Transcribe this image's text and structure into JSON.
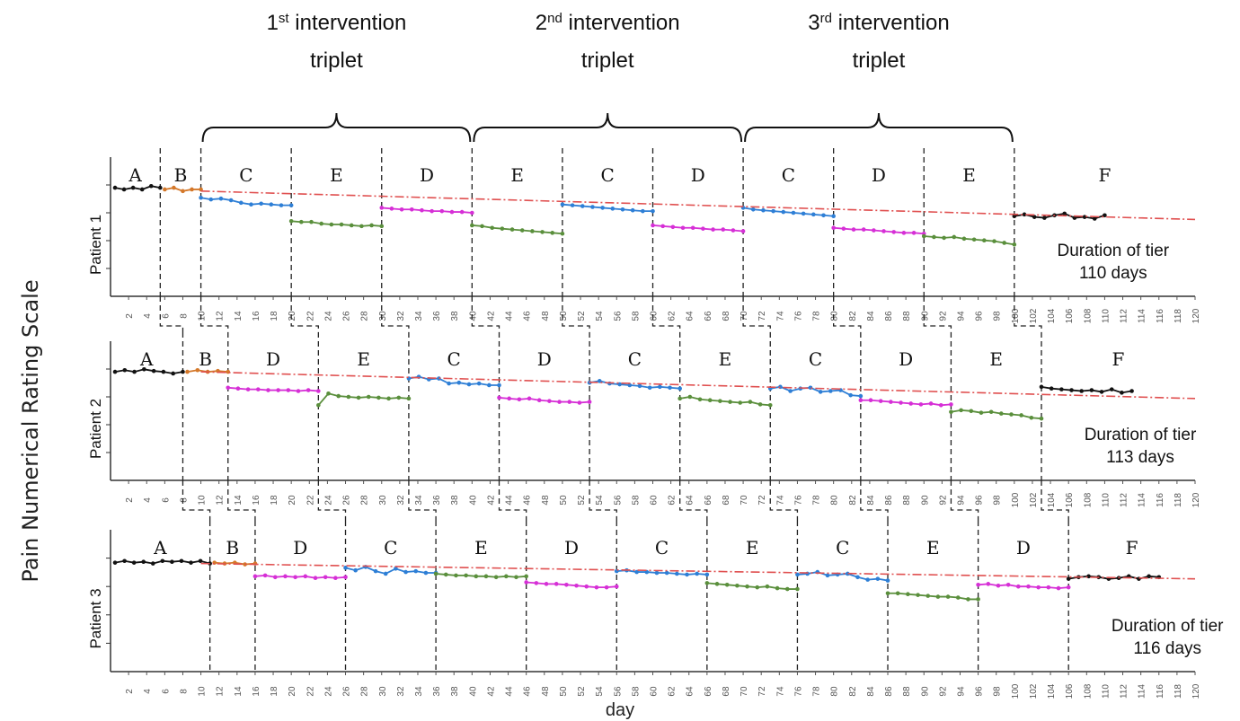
{
  "chart_data": {
    "type": "line",
    "ylabel": "Pain Numerical Rating Scale",
    "xlabel": "day",
    "xlim": [
      0,
      120
    ],
    "x_ticks": [
      2,
      4,
      6,
      8,
      10,
      12,
      14,
      16,
      18,
      20,
      22,
      24,
      26,
      28,
      30,
      32,
      34,
      36,
      38,
      40,
      42,
      44,
      46,
      48,
      50,
      52,
      54,
      56,
      58,
      60,
      62,
      64,
      66,
      68,
      70,
      72,
      74,
      76,
      78,
      80,
      82,
      84,
      86,
      88,
      90,
      92,
      94,
      96,
      98,
      100,
      102,
      104,
      106,
      108,
      110,
      112,
      114,
      116,
      118,
      120
    ],
    "interventions": [
      {
        "ordinal": "1",
        "suffix": "st",
        "label": " intervention",
        "label2": "triplet",
        "from_day": 10,
        "to_day": 40
      },
      {
        "ordinal": "2",
        "suffix": "nd",
        "label": " intervention",
        "label2": "triplet",
        "from_day": 40,
        "to_day": 70
      },
      {
        "ordinal": "3",
        "suffix": "rd",
        "label": " intervention",
        "label2": "triplet",
        "from_day": 70,
        "to_day": 100
      }
    ],
    "phase_colors": {
      "A": "#111111",
      "B": "#d4782a",
      "C": "#2e7fd6",
      "D": "#d62fd6",
      "E": "#5a8f3c",
      "F": "#111111"
    },
    "trend_color": "#e05050",
    "patients": [
      {
        "name": "Patient 1",
        "duration_line1": "Duration of tier",
        "duration_line2": "110 days",
        "boundaries": [
          0,
          5.5,
          10,
          20,
          30,
          40,
          50,
          60,
          70,
          80,
          90,
          100,
          120
        ],
        "phases": [
          {
            "label": "A",
            "from": 0.5,
            "to": 5.5,
            "values": [
              6.5,
              6.4,
              6.5,
              6.4,
              6.6,
              6.5
            ]
          },
          {
            "label": "B",
            "from": 6,
            "to": 10,
            "values": [
              6.4,
              6.5,
              6.3,
              6.4,
              6.4
            ]
          },
          {
            "label": "C",
            "from": 10,
            "to": 20,
            "values": [
              5.9,
              5.8,
              5.85,
              5.75,
              5.6,
              5.5,
              5.55,
              5.5,
              5.45,
              5.45
            ]
          },
          {
            "label": "E",
            "from": 20,
            "to": 30,
            "values": [
              4.5,
              4.45,
              4.45,
              4.35,
              4.3,
              4.3,
              4.25,
              4.2,
              4.25,
              4.2
            ]
          },
          {
            "label": "D",
            "from": 30,
            "to": 40,
            "values": [
              5.3,
              5.25,
              5.2,
              5.2,
              5.15,
              5.1,
              5.1,
              5.05,
              5.05,
              5.0
            ]
          },
          {
            "label": "E",
            "from": 40,
            "to": 50,
            "values": [
              4.25,
              4.2,
              4.1,
              4.05,
              4.0,
              3.95,
              3.9,
              3.85,
              3.8,
              3.75
            ]
          },
          {
            "label": "C",
            "from": 50,
            "to": 60,
            "values": [
              5.5,
              5.45,
              5.4,
              5.35,
              5.3,
              5.25,
              5.2,
              5.15,
              5.1,
              5.1
            ]
          },
          {
            "label": "D",
            "from": 60,
            "to": 70,
            "values": [
              4.25,
              4.2,
              4.15,
              4.1,
              4.1,
              4.05,
              4.0,
              4.0,
              3.95,
              3.9
            ]
          },
          {
            "label": "C",
            "from": 70,
            "to": 80,
            "values": [
              5.3,
              5.2,
              5.15,
              5.1,
              5.05,
              5.0,
              4.95,
              4.9,
              4.85,
              4.8
            ]
          },
          {
            "label": "D",
            "from": 80,
            "to": 90,
            "values": [
              4.1,
              4.05,
              4.0,
              4.0,
              3.95,
              3.9,
              3.85,
              3.8,
              3.8,
              3.75
            ]
          },
          {
            "label": "E",
            "from": 90,
            "to": 100,
            "values": [
              3.6,
              3.55,
              3.5,
              3.55,
              3.45,
              3.4,
              3.35,
              3.3,
              3.2,
              3.1
            ]
          },
          {
            "label": "F",
            "from": 100,
            "to": 110,
            "values": [
              4.8,
              4.9,
              4.75,
              4.7,
              4.85,
              4.95,
              4.7,
              4.75,
              4.65,
              4.85
            ]
          }
        ],
        "trend": [
          6.3,
          4.6
        ]
      },
      {
        "name": "Patient 2",
        "duration_line1": "Duration of tier",
        "duration_line2": "113 days",
        "boundaries": [
          0,
          8,
          13,
          23,
          33,
          43,
          53,
          63,
          73,
          83,
          93,
          103,
          120
        ],
        "phases": [
          {
            "label": "A",
            "from": 0.5,
            "to": 8,
            "values": [
              6.5,
              6.6,
              6.5,
              6.65,
              6.55,
              6.5,
              6.4,
              6.5
            ]
          },
          {
            "label": "B",
            "from": 8.5,
            "to": 13,
            "values": [
              6.5,
              6.6,
              6.5,
              6.55,
              6.5
            ]
          },
          {
            "label": "D",
            "from": 13,
            "to": 23,
            "values": [
              5.55,
              5.5,
              5.45,
              5.45,
              5.4,
              5.4,
              5.4,
              5.35,
              5.4,
              5.35
            ]
          },
          {
            "label": "E",
            "from": 23,
            "to": 33,
            "values": [
              4.5,
              5.2,
              5.05,
              5.0,
              4.95,
              5.0,
              4.95,
              4.9,
              4.95,
              4.9
            ]
          },
          {
            "label": "C",
            "from": 33,
            "to": 43,
            "values": [
              6.1,
              6.2,
              6.05,
              6.1,
              5.8,
              5.85,
              5.75,
              5.8,
              5.7,
              5.7
            ]
          },
          {
            "label": "D",
            "from": 43,
            "to": 53,
            "values": [
              4.95,
              4.9,
              4.85,
              4.9,
              4.8,
              4.75,
              4.7,
              4.7,
              4.65,
              4.7
            ]
          },
          {
            "label": "C",
            "from": 53,
            "to": 63,
            "values": [
              5.85,
              5.95,
              5.8,
              5.75,
              5.7,
              5.65,
              5.55,
              5.6,
              5.55,
              5.5
            ]
          },
          {
            "label": "E",
            "from": 63,
            "to": 73,
            "values": [
              4.9,
              5.0,
              4.85,
              4.8,
              4.75,
              4.7,
              4.65,
              4.7,
              4.55,
              4.5
            ]
          },
          {
            "label": "C",
            "from": 73,
            "to": 83,
            "values": [
              5.5,
              5.6,
              5.35,
              5.5,
              5.55,
              5.3,
              5.35,
              5.4,
              5.1,
              5.05
            ]
          },
          {
            "label": "D",
            "from": 83,
            "to": 93,
            "values": [
              4.8,
              4.8,
              4.75,
              4.7,
              4.65,
              4.6,
              4.55,
              4.6,
              4.5,
              4.55
            ]
          },
          {
            "label": "E",
            "from": 93,
            "to": 103,
            "values": [
              4.1,
              4.2,
              4.15,
              4.05,
              4.1,
              4.0,
              3.95,
              3.9,
              3.75,
              3.7
            ]
          },
          {
            "label": "F",
            "from": 103,
            "to": 113,
            "values": [
              5.6,
              5.5,
              5.45,
              5.4,
              5.35,
              5.4,
              5.3,
              5.45,
              5.25,
              5.35
            ]
          }
        ],
        "trend": [
          6.5,
          4.9
        ]
      },
      {
        "name": "Patient 3",
        "duration_line1": "Duration of tier",
        "duration_line2": "116 days",
        "boundaries": [
          0,
          11,
          16,
          26,
          36,
          46,
          56,
          66,
          76,
          86,
          96,
          106,
          120
        ],
        "phases": [
          {
            "label": "A",
            "from": 0.5,
            "to": 11,
            "values": [
              6.4,
              6.5,
              6.4,
              6.45,
              6.35,
              6.5,
              6.45,
              6.5,
              6.4,
              6.5,
              6.35
            ]
          },
          {
            "label": "B",
            "from": 11.5,
            "to": 16,
            "values": [
              6.4,
              6.35,
              6.4,
              6.3,
              6.35
            ]
          },
          {
            "label": "D",
            "from": 16,
            "to": 26,
            "values": [
              5.6,
              5.65,
              5.55,
              5.6,
              5.55,
              5.6,
              5.5,
              5.55,
              5.5,
              5.55
            ]
          },
          {
            "label": "C",
            "from": 26,
            "to": 36,
            "values": [
              6.1,
              5.95,
              6.15,
              5.9,
              5.75,
              6.05,
              5.85,
              5.9,
              5.8,
              5.8
            ]
          },
          {
            "label": "E",
            "from": 36,
            "to": 46,
            "values": [
              5.75,
              5.7,
              5.65,
              5.65,
              5.6,
              5.6,
              5.55,
              5.6,
              5.55,
              5.6
            ]
          },
          {
            "label": "D",
            "from": 46,
            "to": 56,
            "values": [
              5.25,
              5.2,
              5.15,
              5.15,
              5.1,
              5.05,
              5.0,
              4.95,
              4.95,
              5.0
            ]
          },
          {
            "label": "C",
            "from": 56,
            "to": 66,
            "values": [
              5.9,
              5.95,
              5.85,
              5.85,
              5.8,
              5.8,
              5.75,
              5.7,
              5.75,
              5.7
            ]
          },
          {
            "label": "E",
            "from": 66,
            "to": 76,
            "values": [
              5.2,
              5.15,
              5.1,
              5.05,
              5.0,
              4.95,
              5.0,
              4.9,
              4.85,
              4.85
            ]
          },
          {
            "label": "C",
            "from": 76,
            "to": 86,
            "values": [
              5.7,
              5.75,
              5.85,
              5.65,
              5.7,
              5.75,
              5.55,
              5.4,
              5.45,
              5.35
            ]
          },
          {
            "label": "E",
            "from": 86,
            "to": 96,
            "values": [
              4.6,
              4.6,
              4.55,
              4.5,
              4.45,
              4.4,
              4.4,
              4.35,
              4.25,
              4.25
            ]
          },
          {
            "label": "D",
            "from": 96,
            "to": 106,
            "values": [
              5.1,
              5.15,
              5.05,
              5.1,
              5.0,
              5.0,
              4.95,
              4.95,
              4.9,
              4.95
            ]
          },
          {
            "label": "F",
            "from": 106,
            "to": 116,
            "values": [
              5.45,
              5.55,
              5.6,
              5.55,
              5.45,
              5.5,
              5.6,
              5.45,
              5.6,
              5.55
            ]
          }
        ],
        "trend": [
          6.35,
          5.45
        ]
      }
    ]
  }
}
